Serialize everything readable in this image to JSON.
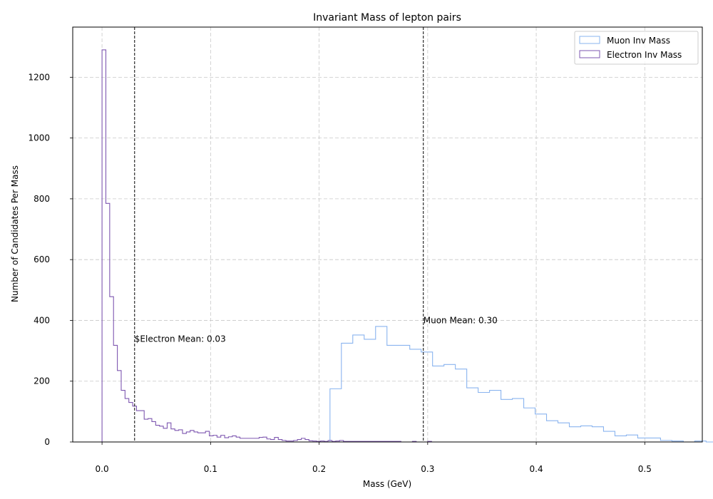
{
  "chart_data": {
    "type": "histogram",
    "title": "Invariant Mass of lepton pairs",
    "xlabel": "Mass (GeV)",
    "ylabel": "Number of Candidates Per Mass",
    "xlim": [
      -0.027,
      0.553
    ],
    "ylim": [
      0,
      1365
    ],
    "xticks": [
      0.0,
      0.1,
      0.2,
      0.3,
      0.4,
      0.5
    ],
    "xtick_labels": [
      "0.0",
      "0.1",
      "0.2",
      "0.3",
      "0.4",
      "0.5"
    ],
    "yticks": [
      0,
      200,
      400,
      600,
      800,
      1000,
      1200
    ],
    "ytick_labels": [
      "0",
      "200",
      "400",
      "600",
      "800",
      "1000",
      "1200"
    ],
    "grid": true,
    "legend_position": "top-right",
    "series": [
      {
        "name": "Muon Inv Mass",
        "color": "#8ab4ef",
        "bin_start": 0.21,
        "bin_width": 0.0105,
        "values": [
          175,
          325,
          352,
          338,
          380,
          318,
          318,
          305,
          296,
          250,
          255,
          240,
          178,
          163,
          170,
          140,
          143,
          112,
          92,
          70,
          63,
          50,
          53,
          50,
          35,
          20,
          23,
          13,
          13,
          5,
          3,
          0,
          3,
          0
        ]
      },
      {
        "name": "Electron Inv Mass",
        "color": "#7e57b0",
        "bin_start": 0.0,
        "bin_width": 0.00353,
        "values": [
          1290,
          785,
          478,
          318,
          235,
          170,
          143,
          130,
          118,
          103,
          103,
          75,
          77,
          67,
          55,
          52,
          45,
          63,
          43,
          38,
          40,
          28,
          33,
          38,
          33,
          30,
          30,
          35,
          20,
          22,
          16,
          22,
          14,
          17,
          20,
          16,
          12,
          12,
          12,
          12,
          12,
          15,
          16,
          10,
          8,
          15,
          8,
          5,
          3,
          3,
          5,
          8,
          12,
          8,
          4,
          3,
          2,
          3,
          2,
          5,
          2,
          3,
          5,
          2,
          2,
          2,
          2,
          2,
          2,
          2,
          2,
          2,
          2,
          2,
          2,
          2,
          2,
          2,
          0,
          0,
          0,
          2,
          0,
          0,
          0,
          2,
          0,
          0,
          0,
          0,
          0,
          0,
          0,
          0,
          0,
          0
        ]
      }
    ],
    "vlines": [
      {
        "x": 0.03,
        "label": "$Electron Mean: 0.03",
        "label_y": 330
      },
      {
        "x": 0.296,
        "label": "Muon Mean: 0.30",
        "label_y": 390
      }
    ]
  }
}
